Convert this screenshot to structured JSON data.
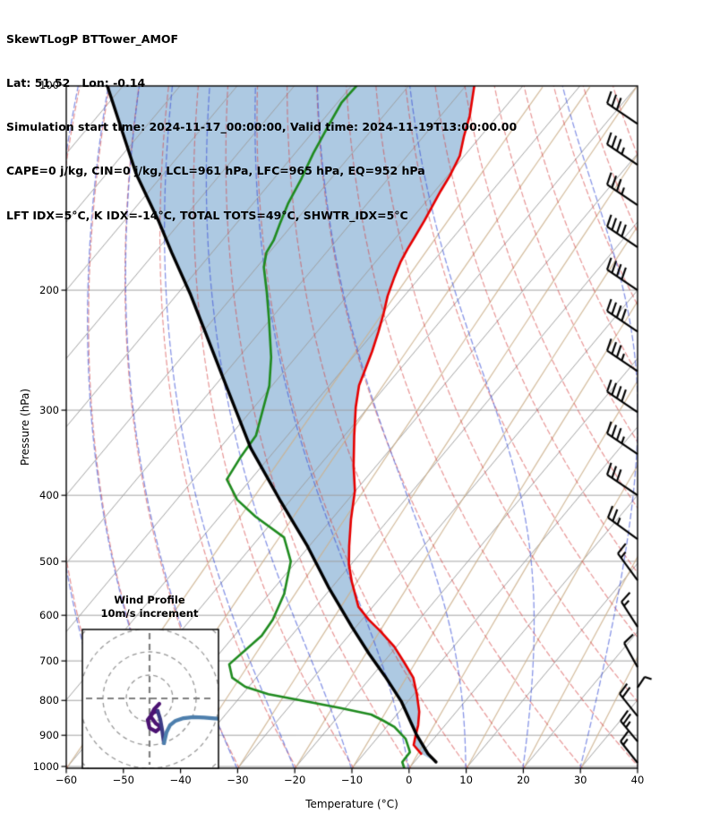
{
  "header": {
    "line1": "SkewTLogP BTTower_AMOF",
    "line2": "Lat: 51.52   Lon: -0.14",
    "line3": "Simulation start time: 2024-11-17_00:00:00, Valid time: 2024-11-19T13:00:00.00",
    "line4": "CAPE=0 j/kg, CIN=0 j/kg, LCL=961 hPa, LFC=965 hPa, EQ=952 hPa",
    "line5": "LFT IDX=5°C, K IDX=-14°C, TOTAL TOTS=49°C, SHWTR_IDX=5°C"
  },
  "axes": {
    "x": {
      "label": "Temperature (°C)",
      "min": -60,
      "max": 40,
      "tick_values": [
        -60,
        -50,
        -40,
        -30,
        -20,
        -10,
        0,
        10,
        20,
        30,
        40
      ],
      "tick_labels": [
        "−60",
        "−50",
        "−40",
        "−30",
        "−20",
        "−10",
        "0",
        "10",
        "20",
        "30",
        "40"
      ]
    },
    "y": {
      "label": "Pressure (hPa)",
      "min": 100,
      "max": 1000,
      "scale": "log",
      "tick_values": [
        100,
        200,
        300,
        400,
        500,
        600,
        700,
        800,
        900,
        1000
      ],
      "tick_labels": [
        "100",
        "200",
        "300",
        "400",
        "500",
        "600",
        "700",
        "800",
        "900",
        "1000"
      ]
    }
  },
  "inset": {
    "title": "Wind Profile",
    "subtitle": "10m/s increment"
  },
  "chart_data": {
    "type": "skewt_logp",
    "title": "SkewTLogP BTTower_AMOF",
    "xlabel": "Temperature (°C)",
    "ylabel": "Pressure (hPa)",
    "xlim": [
      -60,
      40
    ],
    "ylim": [
      1000,
      100
    ],
    "skew_deg_per_decade": 100,
    "colors": {
      "temperature": "#e60000",
      "dewpoint": "#1f8b1f",
      "parcel": "#000000",
      "cape_fill": "#adc9e2",
      "grid": "rgba(158,158,158,0.95)",
      "mixing": "rgba(205,176,140,0.85)",
      "dry_adiabat": "rgba(214,64,64,0.55)",
      "moist_adiabat": "rgba(58,80,215,0.60)",
      "barb": "#000000"
    },
    "background": {
      "isobars_hpa": [
        100,
        200,
        300,
        400,
        500,
        600,
        700,
        800,
        900,
        1000
      ],
      "isotherms_c": {
        "start": -160,
        "end": 40,
        "step": 10
      },
      "dry_adiabats_theta_k": {
        "start": 203,
        "end": 453,
        "step": 10
      },
      "moist_adiabats_t0_c": {
        "start": -100,
        "end": 40,
        "step": 10
      },
      "mixing_lines_td0_c": {
        "start": -60,
        "end": 40,
        "step": 10
      }
    },
    "series": [
      {
        "name": "temperature",
        "style": "solid",
        "width": 2.6,
        "points_p_t": [
          [
            100,
            -88.6
          ],
          [
            111,
            -84.9
          ],
          [
            119,
            -82.9
          ],
          [
            127,
            -80.8
          ],
          [
            136,
            -79.6
          ],
          [
            143,
            -79.0
          ],
          [
            150,
            -78.3
          ],
          [
            158,
            -77.5
          ],
          [
            167,
            -76.8
          ],
          [
            174,
            -76.3
          ],
          [
            182,
            -75.6
          ],
          [
            192,
            -74.4
          ],
          [
            204,
            -72.9
          ],
          [
            216,
            -71.1
          ],
          [
            230,
            -69.3
          ],
          [
            246,
            -67.5
          ],
          [
            261,
            -66.1
          ],
          [
            276,
            -64.8
          ],
          [
            297,
            -62.2
          ],
          [
            327,
            -58.3
          ],
          [
            362,
            -54.0
          ],
          [
            394,
            -50.1
          ],
          [
            434,
            -46.6
          ],
          [
            475,
            -43.0
          ],
          [
            505,
            -40.4
          ],
          [
            536,
            -37.3
          ],
          [
            583,
            -32.5
          ],
          [
            609,
            -28.8
          ],
          [
            633,
            -25.1
          ],
          [
            667,
            -20.4
          ],
          [
            704,
            -16.3
          ],
          [
            741,
            -12.5
          ],
          [
            783,
            -9.5
          ],
          [
            831,
            -6.5
          ],
          [
            870,
            -4.7
          ],
          [
            902,
            -3.6
          ],
          [
            930,
            -2.6
          ],
          [
            958,
            0.0
          ]
        ]
      },
      {
        "name": "dewpoint",
        "style": "solid",
        "width": 2.6,
        "points_p_t": [
          [
            100,
            -109.1
          ],
          [
            106,
            -109.3
          ],
          [
            114,
            -108.3
          ],
          [
            126,
            -106.8
          ],
          [
            137,
            -105.2
          ],
          [
            149,
            -103.9
          ],
          [
            160,
            -102.3
          ],
          [
            169,
            -101.0
          ],
          [
            176,
            -100.5
          ],
          [
            185,
            -98.8
          ],
          [
            201,
            -94.7
          ],
          [
            220,
            -90.4
          ],
          [
            251,
            -84.3
          ],
          [
            276,
            -80.5
          ],
          [
            327,
            -75.5
          ],
          [
            353,
            -75.0
          ],
          [
            379,
            -74.2
          ],
          [
            406,
            -69.4
          ],
          [
            430,
            -63.7
          ],
          [
            461,
            -55.7
          ],
          [
            500,
            -51.0
          ],
          [
            558,
            -47.4
          ],
          [
            609,
            -45.6
          ],
          [
            643,
            -45.2
          ],
          [
            708,
            -46.7
          ],
          [
            741,
            -44.2
          ],
          [
            764,
            -40.6
          ],
          [
            783,
            -35.5
          ],
          [
            802,
            -28.1
          ],
          [
            821,
            -20.8
          ],
          [
            839,
            -14.5
          ],
          [
            857,
            -11.4
          ],
          [
            875,
            -8.6
          ],
          [
            911,
            -4.9
          ],
          [
            943,
            -2.8
          ],
          [
            953,
            -2.2
          ],
          [
            985,
            -2.1
          ],
          [
            1017,
            -0.2
          ]
        ]
      },
      {
        "name": "parcel",
        "style": "solid",
        "width": 3.4,
        "points_p_t": [
          [
            100,
            -152.9
          ],
          [
            114,
            -145.0
          ],
          [
            135,
            -134.8
          ],
          [
            158,
            -124.1
          ],
          [
            176,
            -117.1
          ],
          [
            203,
            -107.6
          ],
          [
            232,
            -99.1
          ],
          [
            275,
            -88.3
          ],
          [
            341,
            -74.6
          ],
          [
            408,
            -61.6
          ],
          [
            475,
            -50.3
          ],
          [
            548,
            -40.3
          ],
          [
            624,
            -30.7
          ],
          [
            683,
            -23.8
          ],
          [
            737,
            -17.7
          ],
          [
            802,
            -11.2
          ],
          [
            897,
            -3.7
          ],
          [
            958,
            1.2
          ],
          [
            985,
            3.8
          ]
        ]
      }
    ],
    "wind_barbs": [
      {
        "p": 114,
        "dx": -34,
        "dy": -23,
        "full": 3,
        "half": 0
      },
      {
        "p": 131,
        "dx": -34,
        "dy": -23,
        "full": 3,
        "half": 1
      },
      {
        "p": 150,
        "dx": -34,
        "dy": -23,
        "full": 3,
        "half": 1
      },
      {
        "p": 173,
        "dx": -34,
        "dy": -23,
        "full": 4,
        "half": 0
      },
      {
        "p": 200,
        "dx": -34,
        "dy": -23,
        "full": 4,
        "half": 0
      },
      {
        "p": 230,
        "dx": -34,
        "dy": -23,
        "full": 4,
        "half": 0
      },
      {
        "p": 263,
        "dx": -34,
        "dy": -23,
        "full": 3,
        "half": 1
      },
      {
        "p": 302,
        "dx": -34,
        "dy": -23,
        "full": 4,
        "half": 0
      },
      {
        "p": 348,
        "dx": -34,
        "dy": -23,
        "full": 3,
        "half": 1
      },
      {
        "p": 400,
        "dx": -34,
        "dy": -23,
        "full": 3,
        "half": 0
      },
      {
        "p": 464,
        "dx": -33,
        "dy": -24,
        "full": 2,
        "half": 1
      },
      {
        "p": 533,
        "dx": -22,
        "dy": -30,
        "full": 1,
        "half": 1
      },
      {
        "p": 624,
        "dx": -18,
        "dy": -28,
        "full": 1,
        "half": 1
      },
      {
        "p": 715,
        "dx": -15,
        "dy": -27,
        "full": 1,
        "half": 0
      },
      {
        "p": 766,
        "dx": 8,
        "dy": -12,
        "full": 0,
        "half": 1
      },
      {
        "p": 844,
        "dx": -20,
        "dy": -25,
        "full": 2,
        "half": 0
      },
      {
        "p": 919,
        "dx": -19,
        "dy": -23,
        "full": 2,
        "half": 1
      },
      {
        "p": 988,
        "dx": -19,
        "dy": -24,
        "full": 1,
        "half": 1
      }
    ],
    "hodograph": {
      "ring_increment_ms": 10,
      "rings_ms": [
        10,
        20,
        30,
        40
      ],
      "segments": [
        {
          "name": "low-level",
          "color": "#4b1272",
          "points_uv_ms": [
            [
              4.2,
              -2.3
            ],
            [
              2.0,
              -4.6
            ],
            [
              0.4,
              -7.7
            ],
            [
              2.7,
              -10.8
            ],
            [
              5.0,
              -12.3
            ],
            [
              2.7,
              -14.2
            ],
            [
              0.0,
              -12.7
            ],
            [
              -0.8,
              -9.2
            ],
            [
              1.5,
              -6.2
            ],
            [
              3.5,
              -5.4
            ]
          ]
        },
        {
          "name": "mid-level",
          "color": "#3c3a85",
          "points_uv_ms": [
            [
              3.5,
              -5.4
            ],
            [
              4.6,
              -9.0
            ],
            [
              5.4,
              -13.5
            ],
            [
              6.2,
              -19.2
            ]
          ]
        },
        {
          "name": "upper-level",
          "color": "#4d7fad",
          "points_uv_ms": [
            [
              6.2,
              -19.2
            ],
            [
              7.3,
              -14.5
            ],
            [
              8.8,
              -11.5
            ],
            [
              11.2,
              -9.6
            ],
            [
              14.6,
              -8.5
            ],
            [
              18.8,
              -8.0
            ],
            [
              23.5,
              -8.2
            ],
            [
              28.0,
              -8.6
            ],
            [
              30.5,
              -8.8
            ]
          ]
        }
      ]
    }
  }
}
